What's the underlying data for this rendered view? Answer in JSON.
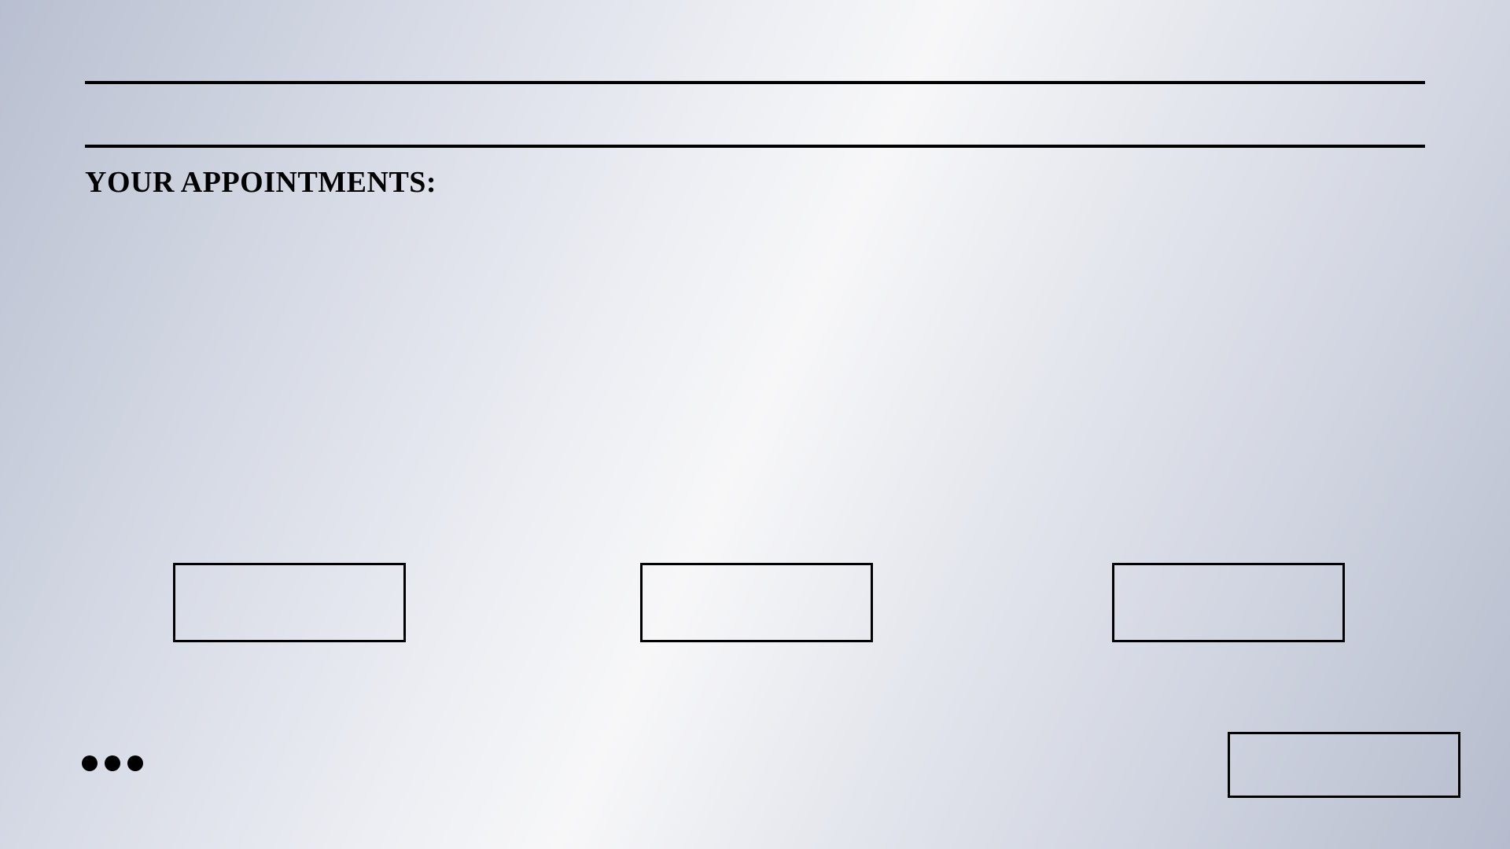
{
  "header": {
    "heading": "YOUR APPOINTMENTS:"
  },
  "appointments": {
    "slots": [
      {
        "label": ""
      },
      {
        "label": ""
      },
      {
        "label": ""
      }
    ]
  },
  "footer": {
    "more_icon": "more-horizontal-icon",
    "action_label": ""
  },
  "colors": {
    "foreground": "#000000",
    "background_light": "#f7f7f8",
    "background_dark": "#b8bfd0"
  }
}
